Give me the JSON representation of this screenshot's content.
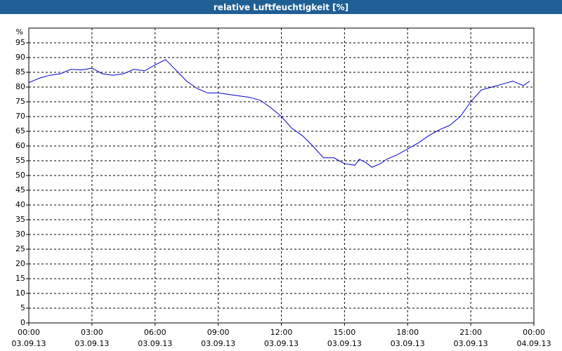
{
  "chart_data": {
    "type": "line",
    "title": "relative Luftfeuchtigkeit [%]",
    "y_label": "%",
    "x": [
      0,
      0.5,
      1,
      1.5,
      2,
      2.5,
      3,
      3.5,
      4,
      4.5,
      5,
      5.5,
      6,
      6.5,
      7,
      7.5,
      8,
      8.5,
      9,
      9.5,
      10,
      10.5,
      11,
      11.5,
      12,
      12.5,
      13,
      13.5,
      14,
      14.5,
      15,
      15.5,
      15.7,
      16,
      16.3,
      16.7,
      17,
      17.5,
      18,
      18.5,
      19,
      19.5,
      20,
      20.5,
      21,
      21.5,
      22,
      22.5,
      23,
      23.5,
      23.8
    ],
    "series": [
      {
        "name": "relative Luftfeuchtigkeit",
        "color": "#0000cc",
        "values": [
          81.5,
          83,
          84,
          84.5,
          86,
          85.8,
          86.4,
          84.5,
          84,
          84.5,
          86,
          85.5,
          87.5,
          89.3,
          85.7,
          82,
          79.5,
          78,
          78,
          77.5,
          77,
          76.5,
          75.5,
          73,
          70,
          66,
          63.5,
          60,
          56,
          56,
          54,
          53.5,
          55.5,
          54.5,
          52.8,
          54,
          55.5,
          57,
          59,
          61,
          63.5,
          65.5,
          67,
          70,
          75,
          79,
          80,
          81,
          82,
          80.5,
          82
        ]
      }
    ],
    "xlim": [
      0,
      24
    ],
    "xticks": [
      {
        "value": 0,
        "label": "00:00"
      },
      {
        "value": 3,
        "label": "03:00"
      },
      {
        "value": 6,
        "label": "06:00"
      },
      {
        "value": 9,
        "label": "09:00"
      },
      {
        "value": 12,
        "label": "12:00"
      },
      {
        "value": 15,
        "label": "15:00"
      },
      {
        "value": 18,
        "label": "18:00"
      },
      {
        "value": 21,
        "label": "21:00"
      },
      {
        "value": 24,
        "label": "00:00"
      }
    ],
    "xtick_dates": [
      "03.09.13",
      "03.09.13",
      "03.09.13",
      "03.09.13",
      "03.09.13",
      "03.09.13",
      "03.09.13",
      "03.09.13",
      "04.09.13"
    ],
    "ylim": [
      0,
      100
    ],
    "yticks": [
      0,
      5,
      10,
      15,
      20,
      25,
      30,
      35,
      40,
      45,
      50,
      55,
      60,
      65,
      70,
      75,
      80,
      85,
      90,
      95
    ],
    "grid": true
  }
}
